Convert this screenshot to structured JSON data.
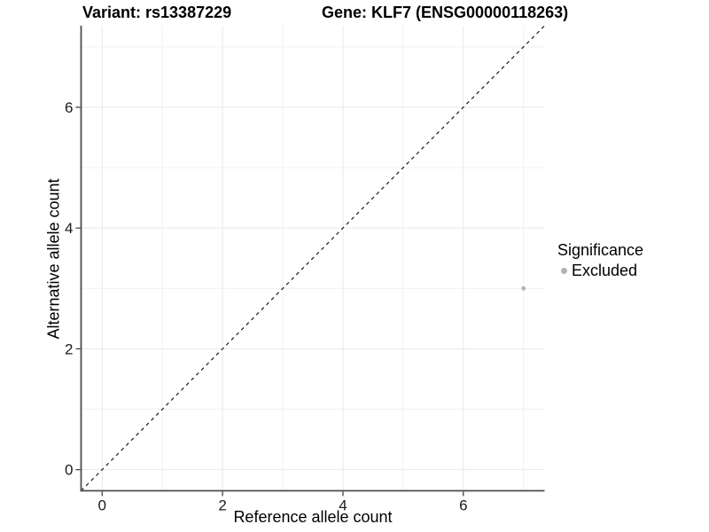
{
  "chart_data": {
    "type": "scatter",
    "title_left": "Variant: rs13387229",
    "title_right": "Gene: KLF7 (ENSG00000118263)",
    "xlabel": "Reference allele count",
    "ylabel": "Alternative allele count",
    "xlim": [
      -0.35,
      7.35
    ],
    "ylim": [
      -0.35,
      7.35
    ],
    "x_major_ticks": [
      0,
      2,
      4,
      6
    ],
    "y_major_ticks": [
      0,
      2,
      4,
      6
    ],
    "x_minor_gridlines": [
      1,
      3,
      5,
      7
    ],
    "y_minor_gridlines": [
      1,
      3,
      5,
      7
    ],
    "grid": true,
    "points": [
      {
        "x": 7,
        "y": 3,
        "series": "Excluded"
      }
    ],
    "identity_line": {
      "style": "dashed",
      "from": [
        -0.35,
        -0.35
      ],
      "to": [
        7.35,
        7.35
      ]
    },
    "legend": {
      "title": "Significance",
      "position": "right",
      "items": [
        {
          "label": "Excluded",
          "color": "#b3b3b3"
        }
      ]
    },
    "colors": {
      "point": "#b3b3b3",
      "grid_major": "#e8e8e8",
      "grid_minor": "#f1f1f1",
      "axis_line": "#4d4d4d",
      "tick_mark": "#333333",
      "tick_label": "#1a1a1a",
      "identity_line": "#1a1a1a",
      "background": "#ffffff"
    }
  }
}
